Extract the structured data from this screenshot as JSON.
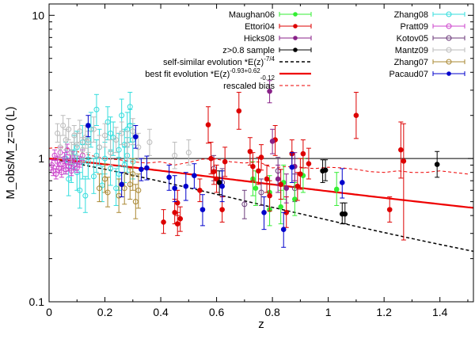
{
  "chart_data": {
    "type": "scatter",
    "title": "",
    "xlabel": "z",
    "ylabel": "M_obs/M_z=0 (L)",
    "xlim": [
      0,
      1.52
    ],
    "ylim": [
      0.1,
      12
    ],
    "yscale": "log",
    "x_ticks": [
      "0",
      "0.2",
      "0.4",
      "0.6",
      "0.8",
      "1",
      "1.2",
      "1.4"
    ],
    "y_ticks": [
      "0.1",
      "1",
      "10"
    ],
    "legend_left": [
      {
        "name": "Maughan06",
        "color": "#33ee33",
        "marker": "filled"
      },
      {
        "name": "Ettori04",
        "color": "#dd0000",
        "marker": "filled"
      },
      {
        "name": "Hicks08",
        "color": "#882288",
        "marker": "filled"
      },
      {
        "name": "z>0.8 sample",
        "color": "#000000",
        "marker": "filled"
      }
    ],
    "legend_lines": [
      {
        "label_main": "self-similar evolution *E(z)",
        "sup": "-7/4",
        "sub": "",
        "color": "#000000",
        "style": "dashed",
        "width": 1.5
      },
      {
        "label_main": "best fit evolution *E(z)",
        "sup": "-0.93",
        "sup2": "+0.62",
        "sub": "-0.12",
        "color": "#ee0000",
        "style": "solid",
        "width": 2.2
      },
      {
        "label_main": "rescaled bias",
        "sup": "",
        "sub": "",
        "color": "#ee0000",
        "style": "dashed",
        "width": 1
      }
    ],
    "legend_right": [
      {
        "name": "Zhang08",
        "color": "#33dddd",
        "marker": "open"
      },
      {
        "name": "Pratt09",
        "color": "#cc44cc",
        "marker": "open"
      },
      {
        "name": "Kotov05",
        "color": "#6b3a7a",
        "marker": "open"
      },
      {
        "name": "Mantz09",
        "color": "#bbbbbb",
        "marker": "open"
      },
      {
        "name": "Zhang07",
        "color": "#aa8833",
        "marker": "open"
      },
      {
        "name": "Pacaud07",
        "color": "#0000cc",
        "marker": "filled"
      }
    ],
    "reference_line": {
      "y": 1.0,
      "color": "#000000"
    },
    "self_similar": {
      "exponent": -1.75,
      "color": "#000000"
    },
    "best_fit": {
      "exponent": -0.93,
      "color": "#ee0000"
    },
    "rescaled_bias": {
      "x": [
        0,
        0.05,
        0.1,
        0.15,
        0.2,
        0.25,
        0.3,
        0.35,
        0.4,
        0.45,
        0.5,
        0.55,
        0.6,
        0.65,
        0.7,
        0.75,
        0.8,
        0.85,
        0.9,
        0.95,
        1.0,
        1.05,
        1.1,
        1.15,
        1.2,
        1.25,
        1.3,
        1.35,
        1.4,
        1.45,
        1.5
      ],
      "y": [
        1.18,
        1.2,
        1.12,
        1.05,
        1.0,
        0.98,
        0.95,
        0.93,
        0.95,
        0.9,
        0.94,
        0.99,
        0.99,
        0.95,
        0.93,
        0.95,
        0.86,
        0.88,
        0.87,
        0.85,
        0.87,
        0.86,
        0.84,
        0.81,
        0.8,
        0.82,
        0.8,
        0.8,
        0.82,
        0.8,
        0.78
      ],
      "color": "#ee0000"
    },
    "series": [
      {
        "name": "Zhang08",
        "color": "#33dddd",
        "marker": "open",
        "points": [
          [
            0.06,
            1.0,
            1.3,
            0.78
          ],
          [
            0.07,
            0.72,
            0.95,
            0.55
          ],
          [
            0.08,
            0.88,
            1.15,
            0.68
          ],
          [
            0.09,
            1.1,
            1.45,
            0.85
          ],
          [
            0.1,
            0.8,
            1.05,
            0.6
          ],
          [
            0.11,
            0.6,
            0.8,
            0.45
          ],
          [
            0.12,
            1.3,
            1.7,
            1.0
          ],
          [
            0.13,
            0.55,
            0.75,
            0.42
          ],
          [
            0.14,
            0.95,
            1.25,
            0.72
          ],
          [
            0.15,
            1.6,
            2.1,
            1.2
          ],
          [
            0.16,
            0.75,
            1.0,
            0.57
          ],
          [
            0.17,
            2.2,
            2.8,
            1.7
          ],
          [
            0.18,
            1.2,
            1.6,
            0.9
          ],
          [
            0.19,
            0.65,
            0.88,
            0.5
          ],
          [
            0.2,
            1.0,
            1.3,
            0.78
          ],
          [
            0.21,
            1.8,
            2.3,
            1.35
          ],
          [
            0.22,
            0.85,
            1.12,
            0.65
          ],
          [
            0.23,
            1.4,
            1.8,
            1.05
          ],
          [
            0.24,
            0.62,
            0.85,
            0.47
          ],
          [
            0.25,
            1.15,
            1.5,
            0.88
          ],
          [
            0.26,
            2.0,
            2.6,
            1.55
          ],
          [
            0.27,
            0.9,
            1.2,
            0.68
          ],
          [
            0.28,
            1.6,
            2.1,
            1.2
          ],
          [
            0.29,
            2.3,
            2.9,
            1.75
          ],
          [
            0.3,
            1.35,
            1.75,
            1.0
          ],
          [
            0.3,
            0.95,
            1.25,
            0.72
          ],
          [
            0.29,
            1.7,
            2.2,
            1.3
          ],
          [
            0.27,
            1.25,
            1.6,
            0.95
          ],
          [
            0.12,
            0.95,
            1.25,
            0.72
          ],
          [
            0.1,
            1.2,
            1.55,
            0.92
          ],
          [
            0.17,
            1.05,
            1.35,
            0.8
          ],
          [
            0.22,
            1.5,
            1.95,
            1.15
          ],
          [
            0.25,
            0.78,
            1.02,
            0.6
          ],
          [
            0.28,
            1.05,
            1.4,
            0.8
          ],
          [
            0.14,
            1.35,
            1.75,
            1.02
          ]
        ]
      },
      {
        "name": "Pratt09",
        "color": "#cc44cc",
        "marker": "open",
        "points": [
          [
            0.01,
            0.9,
            0.98,
            0.83
          ],
          [
            0.015,
            0.82,
            0.9,
            0.76
          ],
          [
            0.02,
            1.05,
            1.15,
            0.97
          ],
          [
            0.025,
            0.78,
            0.85,
            0.72
          ],
          [
            0.03,
            0.95,
            1.04,
            0.88
          ],
          [
            0.035,
            0.86,
            0.94,
            0.8
          ],
          [
            0.04,
            1.1,
            1.2,
            1.02
          ],
          [
            0.045,
            0.8,
            0.88,
            0.74
          ],
          [
            0.05,
            0.92,
            1.0,
            0.85
          ],
          [
            0.055,
            1.0,
            1.1,
            0.92
          ],
          [
            0.06,
            0.84,
            0.92,
            0.78
          ],
          [
            0.065,
            1.15,
            1.26,
            1.06
          ],
          [
            0.07,
            0.88,
            0.96,
            0.82
          ],
          [
            0.075,
            0.97,
            1.06,
            0.9
          ],
          [
            0.08,
            0.82,
            0.9,
            0.76
          ],
          [
            0.085,
            1.02,
            1.12,
            0.94
          ],
          [
            0.09,
            0.9,
            0.98,
            0.83
          ],
          [
            0.1,
            0.86,
            0.94,
            0.8
          ],
          [
            0.11,
            0.94,
            1.03,
            0.87
          ],
          [
            0.12,
            1.05,
            1.15,
            0.97
          ]
        ]
      },
      {
        "name": "Mantz09",
        "color": "#bbbbbb",
        "marker": "open",
        "points": [
          [
            0.03,
            1.5,
            1.75,
            1.3
          ],
          [
            0.04,
            1.2,
            1.45,
            1.0
          ],
          [
            0.05,
            1.7,
            2.0,
            1.45
          ],
          [
            0.06,
            1.35,
            1.6,
            1.15
          ],
          [
            0.07,
            1.6,
            1.9,
            1.35
          ],
          [
            0.08,
            1.1,
            1.3,
            0.92
          ],
          [
            0.09,
            1.45,
            1.7,
            1.25
          ],
          [
            0.1,
            1.25,
            1.5,
            1.05
          ],
          [
            0.11,
            1.55,
            1.85,
            1.3
          ],
          [
            0.12,
            1.15,
            1.4,
            0.95
          ],
          [
            0.13,
            1.4,
            1.7,
            1.18
          ],
          [
            0.14,
            1.3,
            1.55,
            1.1
          ],
          [
            0.16,
            1.6,
            1.95,
            1.3
          ],
          [
            0.18,
            1.2,
            1.45,
            1.0
          ],
          [
            0.2,
            1.45,
            1.75,
            1.2
          ],
          [
            0.22,
            1.1,
            1.35,
            0.9
          ],
          [
            0.24,
            1.35,
            1.65,
            1.1
          ],
          [
            0.26,
            1.5,
            1.8,
            1.25
          ],
          [
            0.28,
            1.25,
            1.55,
            1.0
          ],
          [
            0.3,
            1.55,
            1.9,
            1.25
          ],
          [
            0.32,
            1.2,
            1.5,
            0.98
          ],
          [
            0.36,
            1.3,
            1.6,
            1.05
          ],
          [
            0.45,
            1.05,
            1.3,
            0.85
          ],
          [
            0.5,
            1.1,
            1.35,
            0.9
          ]
        ]
      },
      {
        "name": "Kotov05",
        "color": "#6b3a7a",
        "marker": "open",
        "points": [
          [
            0.62,
            0.68,
            0.85,
            0.55
          ],
          [
            0.7,
            0.48,
            0.6,
            0.38
          ],
          [
            0.76,
            0.58,
            0.72,
            0.47
          ],
          [
            0.82,
            0.82,
            1.02,
            0.66
          ],
          [
            0.88,
            0.62,
            0.78,
            0.5
          ],
          [
            0.59,
            0.85,
            1.05,
            0.7
          ]
        ]
      },
      {
        "name": "Zhang07",
        "color": "#aa8833",
        "marker": "open",
        "points": [
          [
            0.18,
            0.62,
            0.78,
            0.5
          ],
          [
            0.21,
            0.58,
            0.74,
            0.46
          ],
          [
            0.25,
            0.55,
            0.72,
            0.42
          ],
          [
            0.29,
            0.66,
            0.85,
            0.52
          ],
          [
            0.31,
            0.5,
            0.66,
            0.38
          ],
          [
            0.2,
            0.72,
            0.92,
            0.58
          ],
          [
            0.27,
            0.62,
            0.8,
            0.48
          ],
          [
            0.3,
            0.78,
            1.0,
            0.6
          ],
          [
            0.32,
            0.6,
            0.78,
            0.45
          ]
        ]
      },
      {
        "name": "Maughan06",
        "color": "#33ee33",
        "marker": "filled",
        "points": [
          [
            0.73,
            0.72,
            0.95,
            0.55
          ],
          [
            0.74,
            0.62,
            0.82,
            0.47
          ],
          [
            0.79,
            0.58,
            0.76,
            0.44
          ],
          [
            0.84,
            0.68,
            0.9,
            0.52
          ],
          [
            0.88,
            0.52,
            0.68,
            0.4
          ],
          [
            1.03,
            0.61,
            0.8,
            0.47
          ],
          [
            0.79,
            0.44,
            0.58,
            0.34
          ],
          [
            0.91,
            0.76,
            1.0,
            0.58
          ],
          [
            0.83,
            0.46,
            0.6,
            0.35
          ]
        ]
      },
      {
        "name": "Ettori04",
        "color": "#dd0000",
        "marker": "filled",
        "points": [
          [
            0.41,
            0.36,
            0.44,
            0.3
          ],
          [
            0.45,
            0.42,
            0.52,
            0.35
          ],
          [
            0.46,
            0.35,
            0.42,
            0.29
          ],
          [
            0.47,
            0.38,
            0.46,
            0.31
          ],
          [
            0.46,
            0.49,
            0.6,
            0.4
          ],
          [
            0.54,
            0.6,
            0.72,
            0.5
          ],
          [
            0.57,
            1.72,
            2.3,
            1.28
          ],
          [
            0.58,
            1.0,
            1.3,
            0.78
          ],
          [
            0.59,
            0.81,
            1.0,
            0.66
          ],
          [
            0.6,
            0.72,
            0.9,
            0.58
          ],
          [
            0.62,
            0.44,
            0.54,
            0.36
          ],
          [
            0.63,
            0.95,
            1.2,
            0.75
          ],
          [
            0.68,
            2.15,
            2.9,
            1.6
          ],
          [
            0.72,
            1.12,
            1.4,
            0.9
          ],
          [
            0.73,
            0.88,
            1.1,
            0.7
          ],
          [
            0.75,
            0.82,
            1.02,
            0.66
          ],
          [
            0.76,
            1.02,
            1.25,
            0.83
          ],
          [
            0.78,
            0.72,
            0.9,
            0.58
          ],
          [
            0.79,
            0.55,
            0.7,
            0.43
          ],
          [
            0.81,
            1.35,
            1.7,
            1.05
          ],
          [
            0.83,
            0.66,
            0.84,
            0.52
          ],
          [
            0.85,
            0.42,
            0.54,
            0.33
          ],
          [
            0.87,
            1.08,
            1.35,
            0.86
          ],
          [
            0.89,
            0.64,
            0.8,
            0.51
          ],
          [
            0.9,
            0.78,
            1.0,
            0.61
          ],
          [
            0.91,
            1.08,
            1.35,
            0.86
          ],
          [
            1.1,
            2.0,
            2.9,
            1.38
          ],
          [
            1.22,
            0.44,
            0.54,
            0.36
          ],
          [
            1.26,
            1.15,
            1.8,
            0.73
          ],
          [
            1.27,
            0.96,
            1.75,
            0.27
          ],
          [
            0.93,
            0.92,
            1.18,
            0.72
          ]
        ]
      },
      {
        "name": "Hicks08",
        "color": "#882288",
        "marker": "filled",
        "points": [
          [
            0.79,
            2.95,
            3.5,
            2.45
          ],
          [
            0.8,
            1.32,
            1.6,
            1.08
          ],
          [
            0.82,
            0.72,
            0.9,
            0.58
          ],
          [
            0.85,
            0.62,
            0.78,
            0.49
          ],
          [
            0.88,
            0.88,
            1.1,
            0.7
          ]
        ]
      },
      {
        "name": "z>0.8 sample",
        "color": "#000000",
        "marker": "filled",
        "points": [
          [
            0.98,
            0.82,
            0.98,
            0.68
          ],
          [
            0.99,
            0.83,
            0.98,
            0.7
          ],
          [
            1.05,
            0.41,
            0.49,
            0.35
          ],
          [
            1.06,
            0.41,
            0.49,
            0.35
          ],
          [
            1.39,
            0.91,
            1.12,
            0.74
          ],
          [
            0.61,
            0.68,
            0.82,
            0.56
          ]
        ]
      },
      {
        "name": "Pacaud07",
        "color": "#0000cc",
        "marker": "filled",
        "points": [
          [
            0.14,
            1.7,
            2.0,
            1.42
          ],
          [
            0.26,
            0.66,
            0.8,
            0.54
          ],
          [
            0.31,
            1.42,
            1.7,
            1.18
          ],
          [
            0.33,
            0.84,
            1.0,
            0.7
          ],
          [
            0.43,
            0.74,
            0.9,
            0.6
          ],
          [
            0.45,
            0.62,
            0.76,
            0.5
          ],
          [
            0.49,
            0.64,
            0.8,
            0.51
          ],
          [
            0.52,
            0.76,
            0.92,
            0.62
          ],
          [
            0.55,
            0.44,
            0.56,
            0.34
          ],
          [
            0.62,
            0.64,
            0.82,
            0.5
          ],
          [
            0.77,
            0.42,
            0.54,
            0.32
          ],
          [
            0.84,
            0.32,
            0.42,
            0.24
          ],
          [
            0.87,
            0.87,
            1.1,
            0.68
          ],
          [
            1.05,
            0.68,
            0.85,
            0.53
          ],
          [
            0.35,
            0.86,
            1.04,
            0.71
          ]
        ]
      }
    ]
  }
}
